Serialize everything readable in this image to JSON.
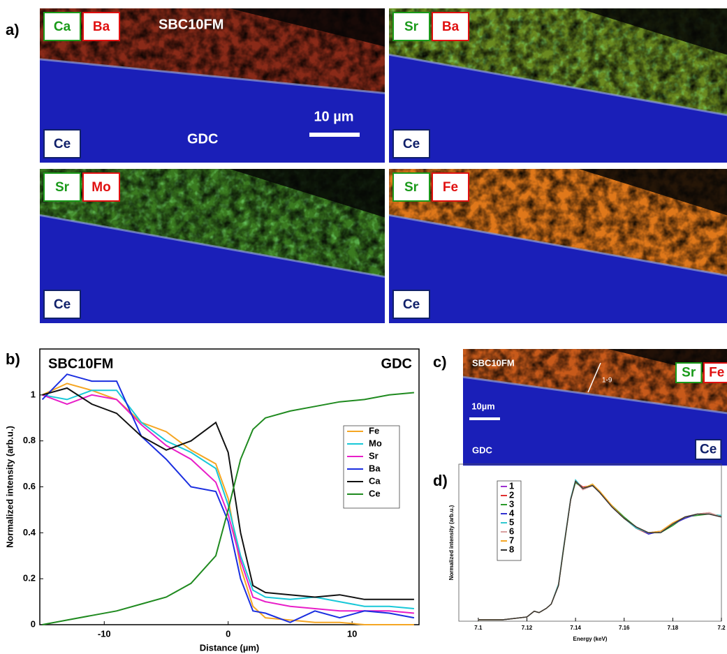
{
  "panels": {
    "a": {
      "label": "a)",
      "images": [
        {
          "tags": [
            {
              "text": "Ca",
              "color": "#1a9a1a"
            },
            {
              "text": "Ba",
              "color": "#e01010"
            },
            {
              "text": "Ce",
              "color": "#10206a"
            }
          ],
          "annotations": [
            "SBC10FM",
            "GDC",
            "10 µm"
          ]
        },
        {
          "tags": [
            {
              "text": "Sr",
              "color": "#1a9a1a"
            },
            {
              "text": "Ba",
              "color": "#e01010"
            },
            {
              "text": "Ce",
              "color": "#10206a"
            }
          ]
        },
        {
          "tags": [
            {
              "text": "Sr",
              "color": "#1a9a1a"
            },
            {
              "text": "Mo",
              "color": "#e01010"
            },
            {
              "text": "Ce",
              "color": "#10206a"
            }
          ]
        },
        {
          "tags": [
            {
              "text": "Sr",
              "color": "#1a9a1a"
            },
            {
              "text": "Fe",
              "color": "#e01010"
            },
            {
              "text": "Ce",
              "color": "#10206a"
            }
          ]
        }
      ]
    },
    "c": {
      "label": "c)",
      "tags": [
        {
          "text": "Sr",
          "color": "#1a9a1a"
        },
        {
          "text": "Fe",
          "color": "#e01010"
        },
        {
          "text": "Ce",
          "color": "#10206a"
        }
      ],
      "annotations": [
        "SBC10FM",
        "10µm",
        "GDC",
        "1-9"
      ]
    }
  },
  "chart_data": [
    {
      "type": "line",
      "label": "b)",
      "annotations": [
        "SBC10FM",
        "GDC"
      ],
      "xlabel": "Distance (µm)",
      "ylabel": "Normalized intensity (arb.u.)",
      "x": [
        -15,
        -13,
        -11,
        -9,
        -7,
        -5,
        -3,
        -1,
        0,
        1,
        2,
        3,
        5,
        7,
        9,
        11,
        13,
        15
      ],
      "xlim": [
        -15.2,
        15.4
      ],
      "ylim": [
        0,
        1.2
      ],
      "xticks": [
        -10,
        0,
        10
      ],
      "yticks": [
        0,
        0.2,
        0.4,
        0.6,
        0.8,
        1
      ],
      "legend": "right",
      "series": [
        {
          "name": "Fe",
          "color": "#f5a623",
          "values": [
            1.0,
            1.05,
            1.02,
            0.98,
            0.88,
            0.84,
            0.76,
            0.7,
            0.55,
            0.25,
            0.08,
            0.03,
            0.02,
            0.01,
            0.01,
            0.0,
            0.0,
            0.0
          ]
        },
        {
          "name": "Mo",
          "color": "#18c8d8",
          "values": [
            1.0,
            0.98,
            1.02,
            1.02,
            0.88,
            0.8,
            0.75,
            0.68,
            0.52,
            0.3,
            0.15,
            0.12,
            0.11,
            0.12,
            0.1,
            0.08,
            0.08,
            0.07
          ]
        },
        {
          "name": "Sr",
          "color": "#e81ec8",
          "values": [
            1.0,
            0.96,
            1.0,
            0.98,
            0.87,
            0.78,
            0.72,
            0.62,
            0.48,
            0.28,
            0.12,
            0.1,
            0.08,
            0.07,
            0.06,
            0.06,
            0.06,
            0.05
          ]
        },
        {
          "name": "Ba",
          "color": "#1a2ee0",
          "values": [
            0.98,
            1.09,
            1.06,
            1.06,
            0.82,
            0.72,
            0.6,
            0.58,
            0.45,
            0.2,
            0.06,
            0.05,
            0.01,
            0.06,
            0.03,
            0.06,
            0.05,
            0.03
          ]
        },
        {
          "name": "Ca",
          "color": "#111111",
          "values": [
            1.0,
            1.03,
            0.96,
            0.92,
            0.82,
            0.76,
            0.8,
            0.88,
            0.75,
            0.4,
            0.17,
            0.14,
            0.13,
            0.12,
            0.13,
            0.11,
            0.11,
            0.11
          ]
        },
        {
          "name": "Ce",
          "color": "#1f8a1f",
          "values": [
            0.0,
            0.02,
            0.04,
            0.06,
            0.09,
            0.12,
            0.18,
            0.3,
            0.5,
            0.72,
            0.85,
            0.9,
            0.93,
            0.95,
            0.97,
            0.98,
            1.0,
            1.01
          ]
        }
      ]
    },
    {
      "type": "line",
      "label": "d)",
      "xlabel": "Energy (keV)",
      "ylabel": "Normalized intensity (arb.u.)",
      "x": [
        7.1,
        7.11,
        7.12,
        7.123,
        7.125,
        7.128,
        7.13,
        7.133,
        7.135,
        7.138,
        7.14,
        7.143,
        7.147,
        7.15,
        7.155,
        7.16,
        7.165,
        7.17,
        7.175,
        7.18,
        7.185,
        7.19,
        7.195,
        7.2
      ],
      "xlim": [
        7.092,
        7.2
      ],
      "ylim": [
        0,
        1.1
      ],
      "xticks": [
        7.1,
        7.12,
        7.14,
        7.16,
        7.18,
        7.2
      ],
      "legend": "left",
      "series": [
        {
          "name": "1",
          "color": "#9b30d0",
          "values": [
            0.01,
            0.01,
            0.03,
            0.07,
            0.06,
            0.09,
            0.12,
            0.25,
            0.5,
            0.85,
            0.98,
            0.93,
            0.95,
            0.9,
            0.8,
            0.72,
            0.66,
            0.62,
            0.63,
            0.68,
            0.73,
            0.75,
            0.75,
            0.73
          ]
        },
        {
          "name": "2",
          "color": "#e03030",
          "values": [
            0.01,
            0.01,
            0.03,
            0.07,
            0.06,
            0.09,
            0.12,
            0.26,
            0.5,
            0.86,
            0.98,
            0.94,
            0.95,
            0.9,
            0.8,
            0.72,
            0.65,
            0.61,
            0.63,
            0.68,
            0.72,
            0.75,
            0.76,
            0.73
          ]
        },
        {
          "name": "3",
          "color": "#2a9a2a",
          "values": [
            0.01,
            0.01,
            0.03,
            0.07,
            0.06,
            0.09,
            0.12,
            0.25,
            0.49,
            0.85,
            0.97,
            0.93,
            0.96,
            0.9,
            0.81,
            0.73,
            0.66,
            0.62,
            0.62,
            0.67,
            0.73,
            0.74,
            0.75,
            0.74
          ]
        },
        {
          "name": "4",
          "color": "#3030d0",
          "values": [
            0.01,
            0.01,
            0.03,
            0.07,
            0.06,
            0.09,
            0.12,
            0.25,
            0.5,
            0.85,
            0.98,
            0.93,
            0.95,
            0.91,
            0.8,
            0.72,
            0.66,
            0.61,
            0.63,
            0.68,
            0.72,
            0.75,
            0.75,
            0.73
          ]
        },
        {
          "name": "5",
          "color": "#30c8d0",
          "values": [
            0.01,
            0.01,
            0.03,
            0.07,
            0.06,
            0.09,
            0.12,
            0.26,
            0.51,
            0.86,
            0.99,
            0.93,
            0.95,
            0.9,
            0.8,
            0.72,
            0.65,
            0.62,
            0.63,
            0.68,
            0.73,
            0.75,
            0.75,
            0.74
          ]
        },
        {
          "name": "6",
          "color": "#d8a0a0",
          "values": [
            0.01,
            0.01,
            0.03,
            0.07,
            0.06,
            0.09,
            0.12,
            0.25,
            0.5,
            0.85,
            0.98,
            0.92,
            0.95,
            0.9,
            0.8,
            0.72,
            0.66,
            0.62,
            0.63,
            0.68,
            0.73,
            0.75,
            0.76,
            0.73
          ]
        },
        {
          "name": "7",
          "color": "#f5a623",
          "values": [
            0.01,
            0.01,
            0.03,
            0.07,
            0.06,
            0.09,
            0.12,
            0.25,
            0.5,
            0.85,
            0.98,
            0.93,
            0.96,
            0.91,
            0.81,
            0.72,
            0.66,
            0.62,
            0.63,
            0.69,
            0.73,
            0.75,
            0.75,
            0.73
          ]
        },
        {
          "name": "8",
          "color": "#333333",
          "values": [
            0.01,
            0.01,
            0.03,
            0.07,
            0.06,
            0.09,
            0.12,
            0.25,
            0.5,
            0.85,
            0.98,
            0.93,
            0.95,
            0.9,
            0.8,
            0.72,
            0.66,
            0.62,
            0.62,
            0.68,
            0.73,
            0.75,
            0.75,
            0.73
          ]
        }
      ]
    }
  ]
}
